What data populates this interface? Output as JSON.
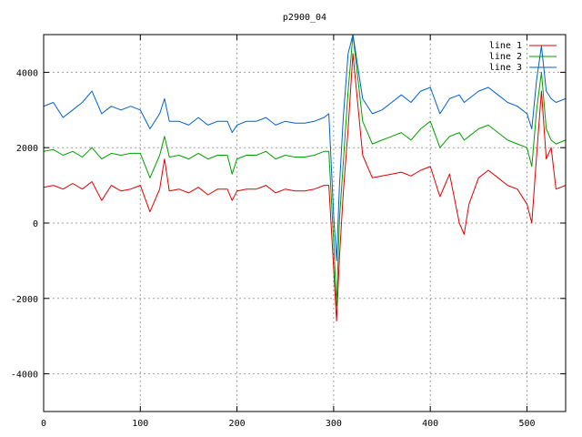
{
  "chart_data": {
    "type": "line",
    "title": "p2900_04",
    "xlabel": "",
    "ylabel": "",
    "xlim": [
      0,
      540
    ],
    "ylim": [
      -5000,
      5000
    ],
    "xticks": [
      0,
      100,
      200,
      300,
      400,
      500
    ],
    "yticks": [
      -4000,
      -2000,
      0,
      2000,
      4000
    ],
    "grid": true,
    "legend_position": "top-right",
    "x": [
      0,
      10,
      20,
      30,
      40,
      50,
      60,
      70,
      80,
      90,
      100,
      110,
      120,
      125,
      130,
      140,
      150,
      160,
      170,
      180,
      190,
      195,
      200,
      210,
      220,
      230,
      240,
      250,
      260,
      270,
      280,
      290,
      295,
      300,
      303,
      306,
      310,
      315,
      320,
      330,
      340,
      350,
      360,
      370,
      380,
      390,
      400,
      410,
      420,
      430,
      435,
      440,
      450,
      460,
      470,
      480,
      490,
      500,
      505,
      510,
      515,
      520,
      525,
      530,
      540
    ],
    "series": [
      {
        "name": "line 1",
        "color": "#e00000",
        "values": [
          950,
          1000,
          900,
          1050,
          900,
          1100,
          600,
          1000,
          850,
          900,
          1000,
          300,
          900,
          1700,
          850,
          900,
          800,
          950,
          750,
          900,
          900,
          600,
          850,
          900,
          900,
          1000,
          800,
          900,
          850,
          850,
          900,
          1000,
          1000,
          -1200,
          -2600,
          -900,
          800,
          2500,
          4500,
          1800,
          1200,
          1250,
          1300,
          1350,
          1250,
          1400,
          1500,
          700,
          1300,
          0,
          -300,
          500,
          1200,
          1400,
          1200,
          1000,
          900,
          500,
          0,
          1800,
          3500,
          1700,
          2000,
          900,
          1000
        ]
      },
      {
        "name": "line 2",
        "color": "#00a000",
        "values": [
          1900,
          1950,
          1800,
          1900,
          1750,
          2000,
          1700,
          1850,
          1800,
          1850,
          1850,
          1200,
          1800,
          2300,
          1750,
          1800,
          1700,
          1850,
          1700,
          1800,
          1800,
          1300,
          1700,
          1800,
          1800,
          1900,
          1700,
          1800,
          1750,
          1750,
          1800,
          1900,
          1900,
          -500,
          -2200,
          100,
          1600,
          3500,
          5000,
          2700,
          2100,
          2200,
          2300,
          2400,
          2200,
          2500,
          2700,
          2000,
          2300,
          2400,
          2200,
          2300,
          2500,
          2600,
          2400,
          2200,
          2100,
          2000,
          1500,
          3000,
          4000,
          2500,
          2200,
          2100,
          2200
        ]
      },
      {
        "name": "line 3",
        "color": "#0060d0",
        "values": [
          3100,
          3200,
          2800,
          3000,
          3200,
          3500,
          2900,
          3100,
          3000,
          3100,
          3000,
          2500,
          2900,
          3300,
          2700,
          2700,
          2600,
          2800,
          2600,
          2700,
          2700,
          2400,
          2600,
          2700,
          2700,
          2800,
          2600,
          2700,
          2650,
          2650,
          2700,
          2800,
          2900,
          200,
          -1000,
          1000,
          2800,
          4500,
          5000,
          3300,
          2900,
          3000,
          3200,
          3400,
          3200,
          3500,
          3600,
          2900,
          3300,
          3400,
          3200,
          3300,
          3500,
          3600,
          3400,
          3200,
          3100,
          2900,
          2500,
          3800,
          4700,
          3500,
          3300,
          3200,
          3300
        ]
      }
    ]
  }
}
